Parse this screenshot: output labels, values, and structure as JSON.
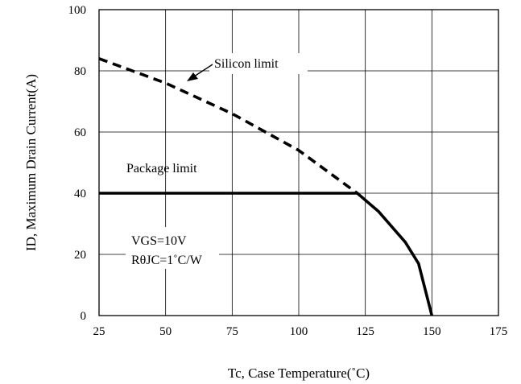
{
  "chart_data": {
    "type": "line",
    "title": "",
    "xlabel": "Tc, Case Temperature(˚C)",
    "ylabel": "ID, Maximum Drain Current(A)",
    "xlim": [
      25,
      175
    ],
    "ylim": [
      0,
      100
    ],
    "x_ticks": [
      "25",
      "50",
      "75",
      "100",
      "125",
      "150",
      "175"
    ],
    "y_ticks": [
      "0",
      "20",
      "40",
      "60",
      "80",
      "100"
    ],
    "grid": true,
    "series": [
      {
        "name": "Silicon limit",
        "style": "dashed",
        "color": "#000000",
        "x": [
          25,
          50,
          75,
          100,
          122
        ],
        "y": [
          84,
          76,
          66,
          54,
          40
        ]
      },
      {
        "name": "Package limit",
        "style": "solid",
        "color": "#000000",
        "x": [
          25,
          50,
          75,
          100,
          122,
          130,
          140,
          145,
          150
        ],
        "y": [
          40,
          40,
          40,
          40,
          40,
          34,
          24,
          17,
          0
        ]
      }
    ],
    "annotations": {
      "silicon_limit": "Silicon limit",
      "package_limit": "Package limit",
      "vgs": "VGS=10V",
      "rthjc": "RθJC=1˚C/W"
    }
  }
}
